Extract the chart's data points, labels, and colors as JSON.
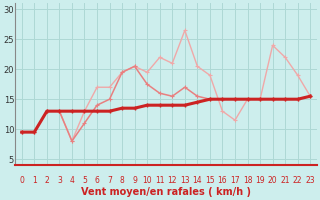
{
  "xlabel": "Vent moyen/en rafales ( km/h )",
  "xlim_min": -0.5,
  "xlim_max": 23.5,
  "ylim_min": 4,
  "ylim_max": 31,
  "yticks": [
    5,
    10,
    15,
    20,
    25,
    30
  ],
  "xticks": [
    0,
    1,
    2,
    3,
    4,
    5,
    6,
    7,
    8,
    9,
    10,
    11,
    12,
    13,
    14,
    15,
    16,
    17,
    18,
    19,
    20,
    21,
    22,
    23
  ],
  "bg_color": "#cdeeed",
  "grid_color": "#aed8d5",
  "red_line_y": 4.5,
  "line1_x": [
    0,
    1,
    2,
    3,
    4,
    5,
    6,
    7,
    8,
    9,
    10,
    11,
    12,
    13,
    14,
    15,
    16,
    17,
    18,
    19,
    20,
    21,
    22,
    23
  ],
  "line1_y": [
    9.5,
    9.5,
    13,
    13,
    13,
    13,
    13,
    13,
    13.5,
    13.5,
    14,
    14,
    14,
    14,
    14.5,
    15,
    15,
    15,
    15,
    15,
    15,
    15,
    15,
    15.5
  ],
  "line2_x": [
    0,
    1,
    2,
    3,
    4,
    5,
    6,
    7,
    8,
    9,
    10,
    11,
    12,
    13,
    14,
    15,
    16,
    17,
    18,
    19,
    20,
    21,
    22,
    23
  ],
  "line2_y": [
    9.5,
    9.5,
    13,
    13,
    8,
    11,
    14,
    15,
    19.5,
    20.5,
    17.5,
    16,
    15.5,
    17,
    15.5,
    15,
    15,
    15,
    15,
    15,
    15,
    15,
    15,
    15.5
  ],
  "line3_x": [
    0,
    1,
    2,
    3,
    4,
    5,
    6,
    7,
    8,
    9,
    10,
    11,
    12,
    13,
    14,
    15,
    16,
    17,
    18,
    19,
    20,
    21,
    22,
    23
  ],
  "line3_y": [
    9.5,
    9.5,
    13,
    13,
    8,
    13,
    17,
    17,
    19.5,
    20.5,
    19.5,
    22,
    21,
    26.5,
    20.5,
    19,
    13,
    11.5,
    15,
    15,
    24,
    22,
    19,
    15.5
  ],
  "color_dark": "#cc2222",
  "color_mid": "#e88080",
  "color_light": "#f0a8a8",
  "lw_dark": 2.2,
  "lw_mid": 1.1,
  "lw_light": 1.0,
  "marker_size": 3.0,
  "xlabel_color": "#cc2222",
  "xlabel_fontsize": 7,
  "ytick_fontsize": 6,
  "xtick_fontsize": 5.5
}
